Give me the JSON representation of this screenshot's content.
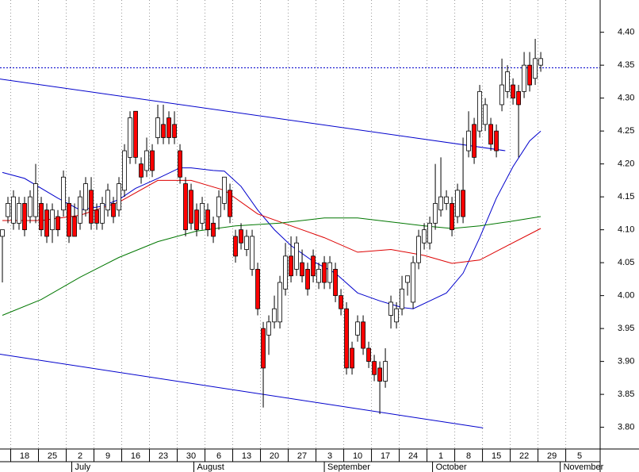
{
  "chart_data": {
    "type": "candlestick",
    "up_color": "#ffffff",
    "down_color": "#ff0000",
    "wick_color": "#000000",
    "open": [
      4.09,
      4.12,
      4.11,
      4.11,
      4.14,
      4.12,
      4.12,
      4.14,
      4.13,
      4.1,
      4.12,
      4.13,
      4.14,
      4.12,
      4.11,
      4.13,
      4.16,
      4.13,
      4.11,
      4.13,
      4.14,
      4.13,
      4.16,
      4.21,
      4.28,
      4.2,
      4.19,
      4.22,
      4.24,
      4.26,
      4.27,
      4.26,
      4.22,
      4.17,
      4.16,
      4.13,
      4.11,
      4.13,
      4.11,
      4.12,
      4.14,
      4.16,
      4.09,
      4.1,
      4.07,
      4.04,
      4.04,
      3.95,
      3.94,
      3.96,
      3.96,
      4.01,
      4.06,
      4.04,
      4.05,
      4.04,
      4.06,
      4.02,
      4.05,
      4.02,
      4.04,
      4.0,
      3.98,
      3.92,
      3.94,
      3.96,
      3.92,
      3.9,
      3.89,
      3.87,
      3.97,
      3.96,
      3.98,
      4.02,
      3.99,
      4.05,
      4.08,
      4.08,
      4.11,
      4.13,
      4.14,
      4.14,
      4.12,
      4.16,
      4.22,
      4.26,
      4.25,
      4.26,
      4.26,
      4.25,
      4.29,
      4.31,
      4.32,
      4.31,
      4.31,
      4.35,
      4.33,
      4.35
    ],
    "high": [
      4.1,
      4.15,
      4.16,
      4.15,
      4.15,
      4.16,
      4.2,
      4.15,
      4.14,
      4.14,
      4.13,
      4.19,
      4.15,
      4.14,
      4.16,
      4.18,
      4.18,
      4.14,
      4.15,
      4.17,
      4.15,
      4.18,
      4.23,
      4.28,
      4.28,
      4.21,
      4.24,
      4.23,
      4.29,
      4.29,
      4.28,
      4.28,
      4.23,
      4.18,
      4.17,
      4.14,
      4.15,
      4.14,
      4.12,
      4.16,
      4.18,
      4.17,
      4.1,
      4.11,
      4.1,
      4.1,
      4.05,
      3.96,
      3.97,
      4.0,
      4.03,
      4.08,
      4.09,
      4.09,
      4.07,
      4.05,
      4.07,
      4.05,
      4.06,
      4.06,
      4.05,
      4.01,
      3.99,
      3.93,
      3.97,
      3.97,
      3.93,
      3.91,
      3.9,
      3.92,
      4.0,
      3.99,
      4.03,
      4.03,
      4.06,
      4.1,
      4.11,
      4.12,
      4.2,
      4.21,
      4.16,
      4.15,
      4.17,
      4.24,
      4.28,
      4.27,
      4.32,
      4.3,
      4.27,
      4.26,
      4.36,
      4.35,
      4.33,
      4.32,
      4.37,
      4.37,
      4.39,
      4.37
    ],
    "low": [
      4.02,
      4.11,
      4.1,
      4.1,
      4.09,
      4.11,
      4.11,
      4.09,
      4.08,
      4.08,
      4.09,
      4.12,
      4.08,
      4.09,
      4.1,
      4.12,
      4.1,
      4.1,
      4.1,
      4.12,
      4.11,
      4.12,
      4.15,
      4.2,
      4.2,
      4.17,
      4.18,
      4.18,
      4.23,
      4.23,
      4.23,
      4.23,
      4.17,
      4.09,
      4.1,
      4.09,
      4.1,
      4.09,
      4.08,
      4.1,
      4.13,
      4.11,
      4.05,
      4.07,
      4.06,
      4.03,
      3.97,
      3.83,
      3.91,
      3.95,
      3.95,
      4.0,
      4.02,
      4.03,
      4.02,
      4.0,
      4.02,
      4.01,
      4.01,
      4.01,
      3.99,
      3.97,
      3.88,
      3.88,
      3.93,
      3.91,
      3.89,
      3.87,
      3.82,
      3.86,
      3.95,
      3.95,
      3.97,
      4.0,
      3.98,
      4.04,
      4.07,
      4.07,
      4.1,
      4.12,
      4.13,
      4.09,
      4.11,
      4.11,
      4.21,
      4.2,
      4.24,
      4.25,
      4.22,
      4.21,
      4.28,
      4.3,
      4.29,
      4.21,
      4.3,
      4.31,
      4.32,
      4.34
    ],
    "close": [
      4.1,
      4.14,
      4.15,
      4.14,
      4.1,
      4.15,
      4.17,
      4.1,
      4.09,
      4.13,
      4.1,
      4.18,
      4.09,
      4.09,
      4.15,
      4.17,
      4.11,
      4.11,
      4.14,
      4.16,
      4.12,
      4.17,
      4.22,
      4.27,
      4.21,
      4.18,
      4.22,
      4.19,
      4.27,
      4.24,
      4.24,
      4.24,
      4.18,
      4.1,
      4.11,
      4.1,
      4.14,
      4.1,
      4.09,
      4.15,
      4.18,
      4.12,
      4.06,
      4.08,
      4.09,
      4.09,
      3.98,
      3.89,
      3.96,
      3.98,
      4.02,
      4.06,
      4.03,
      4.08,
      4.03,
      4.01,
      4.03,
      4.04,
      4.02,
      4.05,
      4.0,
      3.98,
      3.89,
      3.89,
      3.96,
      3.92,
      3.9,
      3.88,
      3.87,
      3.9,
      3.99,
      3.98,
      4.01,
      4.03,
      4.05,
      4.09,
      4.1,
      4.11,
      4.14,
      4.15,
      4.15,
      4.1,
      4.16,
      4.12,
      4.25,
      4.21,
      4.31,
      4.29,
      4.23,
      4.22,
      4.32,
      4.34,
      4.3,
      4.29,
      4.35,
      4.32,
      4.36,
      4.36
    ],
    "series": [
      {
        "color": "#0000cc",
        "x": [
          0,
          4,
          10,
          14,
          18,
          21,
          24,
          28,
          32,
          34,
          38,
          40,
          43,
          46,
          49,
          52,
          56,
          60,
          64,
          68,
          72,
          74,
          77,
          80,
          83,
          86,
          89,
          92,
          95,
          97
        ],
        "values": [
          4.187,
          4.178,
          4.148,
          4.13,
          4.136,
          4.146,
          4.163,
          4.178,
          4.194,
          4.194,
          4.19,
          4.189,
          4.166,
          4.13,
          4.1,
          4.076,
          4.052,
          4.034,
          4.004,
          3.992,
          3.982,
          3.98,
          3.992,
          4.004,
          4.034,
          4.088,
          4.148,
          4.196,
          4.235,
          4.25
        ]
      },
      {
        "color": "#dd0000",
        "x": [
          0,
          7,
          14,
          21,
          28,
          34,
          40,
          46,
          52,
          58,
          64,
          70,
          76,
          81,
          86,
          91,
          97
        ],
        "values": [
          4.114,
          4.114,
          4.122,
          4.142,
          4.175,
          4.175,
          4.16,
          4.124,
          4.106,
          4.088,
          4.066,
          4.07,
          4.061,
          4.049,
          4.054,
          4.076,
          4.102
        ]
      },
      {
        "color": "#007700",
        "x": [
          0,
          7,
          14,
          21,
          28,
          35,
          42,
          50,
          58,
          64,
          70,
          76,
          81,
          86,
          91,
          97
        ],
        "values": [
          3.97,
          3.994,
          4.028,
          4.058,
          4.082,
          4.098,
          4.106,
          4.11,
          4.118,
          4.118,
          4.112,
          4.106,
          4.102,
          4.106,
          4.112,
          4.12
        ]
      }
    ],
    "trend_lines": [
      {
        "color": "#0000cc",
        "x": [
          -0.43,
          90.6
        ],
        "y": [
          4.329,
          4.22
        ]
      },
      {
        "color": "#0000cc",
        "x": [
          -0.43,
          86.6
        ],
        "y": [
          3.911,
          3.799
        ]
      }
    ],
    "price_line": {
      "color": "#0000cc",
      "value": 4.346
    },
    "xlim": [
      -0.43,
      107.7
    ],
    "ylim": [
      3.767,
      4.449
    ],
    "yticks": [
      {
        "value": 3.8,
        "label": "3.80"
      },
      {
        "value": 3.85,
        "label": "3.85"
      },
      {
        "value": 3.9,
        "label": "3.90"
      },
      {
        "value": 3.95,
        "label": "3.95"
      },
      {
        "value": 4.0,
        "label": "4.00"
      },
      {
        "value": 4.05,
        "label": "4.05"
      },
      {
        "value": 4.1,
        "label": "4.10"
      },
      {
        "value": 4.15,
        "label": "4.15"
      },
      {
        "value": 4.2,
        "label": "4.20"
      },
      {
        "value": 4.25,
        "label": "4.25"
      },
      {
        "value": 4.3,
        "label": "4.30"
      },
      {
        "value": 4.35,
        "label": "4.35"
      },
      {
        "value": 4.4,
        "label": "4.40"
      }
    ],
    "xticks": [
      {
        "value": 1.5,
        "label": "18"
      },
      {
        "value": 6.5,
        "label": "25"
      },
      {
        "value": 11.5,
        "label": "2"
      },
      {
        "value": 16.5,
        "label": "9"
      },
      {
        "value": 21.5,
        "label": "16"
      },
      {
        "value": 26.5,
        "label": "23"
      },
      {
        "value": 31.5,
        "label": "30"
      },
      {
        "value": 36.5,
        "label": "6"
      },
      {
        "value": 41.5,
        "label": "13"
      },
      {
        "value": 46.5,
        "label": "20"
      },
      {
        "value": 51.5,
        "label": "27"
      },
      {
        "value": 56.5,
        "label": "3"
      },
      {
        "value": 61.5,
        "label": "10"
      },
      {
        "value": 66.5,
        "label": "17"
      },
      {
        "value": 71.5,
        "label": "24"
      },
      {
        "value": 76.5,
        "label": "1"
      },
      {
        "value": 81.5,
        "label": "8"
      },
      {
        "value": 86.5,
        "label": "15"
      },
      {
        "value": 91.5,
        "label": "22"
      },
      {
        "value": 96.5,
        "label": "29"
      },
      {
        "value": 101.5,
        "label": "5"
      }
    ],
    "months": [
      {
        "value": 12.5,
        "label": "July"
      },
      {
        "value": 34.5,
        "label": "August"
      },
      {
        "value": 58,
        "label": "September"
      },
      {
        "value": 77.5,
        "label": "October"
      },
      {
        "value": 100.5,
        "label": "November"
      }
    ],
    "grid": true
  }
}
